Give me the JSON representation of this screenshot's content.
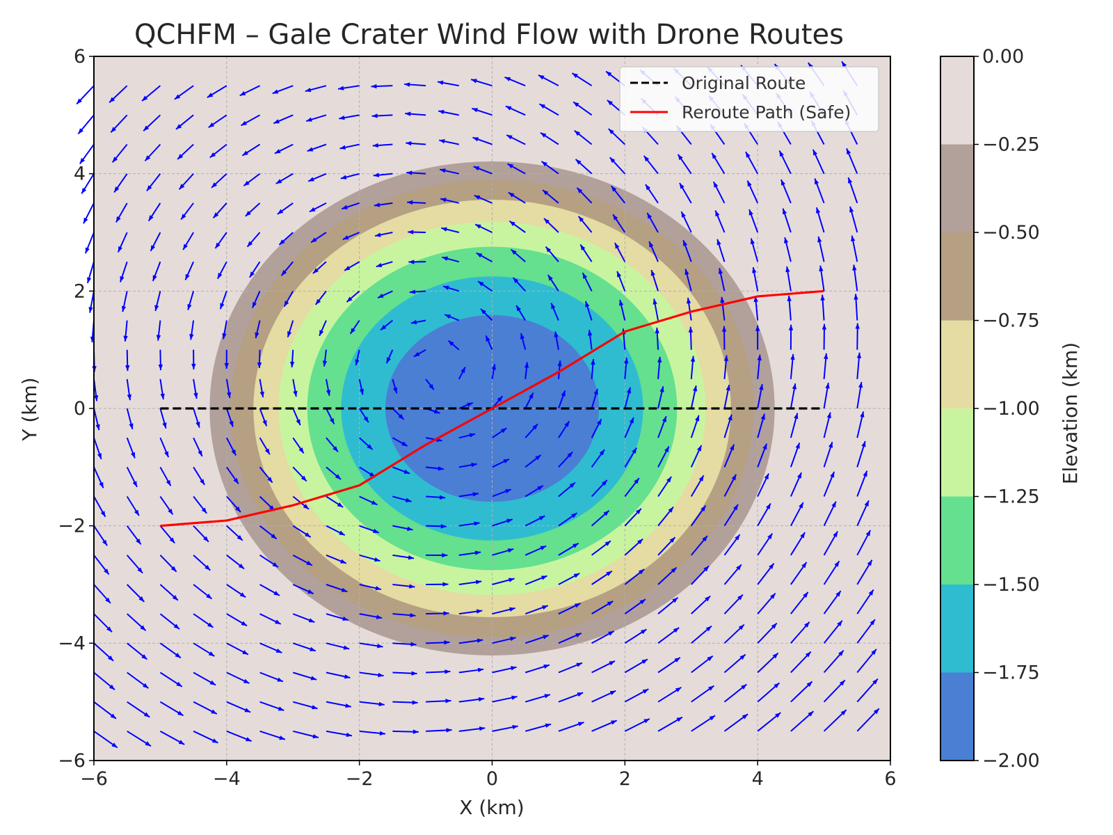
{
  "chart_data": {
    "type": "contour-quiver",
    "title": "QCHFM – Gale Crater Wind Flow with Drone Routes",
    "xlabel": "X (km)",
    "ylabel": "Y (km)",
    "xlim": [
      -6,
      6
    ],
    "ylim": [
      -6,
      6
    ],
    "xticks": [
      -6,
      -4,
      -2,
      0,
      2,
      4,
      6
    ],
    "yticks": [
      -6,
      -4,
      -2,
      0,
      2,
      4,
      6
    ],
    "x_tick_labels": [
      "−6",
      "−4",
      "−2",
      "0",
      "2",
      "4",
      "6"
    ],
    "y_tick_labels": [
      "−6",
      "−4",
      "−2",
      "0",
      "2",
      "4",
      "6"
    ],
    "grid": true,
    "crater": {
      "depth_km": 2.0,
      "radius_x_km": 4.55,
      "radius_y_km": 4.5
    },
    "contour_levels": [
      -2.0,
      -1.75,
      -1.5,
      -1.25,
      -1.0,
      -0.75,
      -0.5,
      -0.25,
      0.0
    ],
    "contour_colors": [
      "#4a7fd4",
      "#2fbcd0",
      "#64e08f",
      "#c8f4a0",
      "#e4dca2",
      "#b5a083",
      "#b2a09a",
      "#e5dcda"
    ],
    "colorbar": {
      "label": "Elevation (km)",
      "tick_labels": [
        "0.00",
        "−0.25",
        "−0.50",
        "−0.75",
        "−1.00",
        "−1.25",
        "−1.50",
        "−1.75",
        "−2.00"
      ]
    },
    "series": [
      {
        "name": "Original Route",
        "style": "dashed",
        "color": "#000000",
        "x": [
          -5,
          5
        ],
        "y": [
          0,
          0
        ]
      },
      {
        "name": "Reroute Path (Safe)",
        "style": "solid",
        "color": "#ff0000",
        "x": [
          -5,
          -4,
          -3,
          -2,
          -1,
          0,
          1,
          2,
          3,
          4,
          5
        ],
        "y": [
          -2,
          -1.91,
          -1.65,
          -1.31,
          -0.62,
          0,
          0.62,
          1.31,
          1.65,
          1.91,
          2
        ]
      }
    ],
    "wind_field": {
      "color": "#0000ff",
      "grid_x": [
        -6,
        -5.5,
        -5,
        -4.5,
        -4,
        -3.5,
        -3,
        -2.5,
        -2,
        -1.5,
        -1,
        -0.5,
        0,
        0.5,
        1,
        1.5,
        2,
        2.5,
        3,
        3.5,
        4,
        4.5,
        5,
        5.5
      ],
      "grid_y": [
        -5.5,
        -5,
        -4.5,
        -4,
        -3.5,
        -3,
        -2.5,
        -2,
        -1.5,
        -1,
        -0.5,
        0,
        0.5,
        1,
        1.5,
        2,
        2.5,
        3,
        3.5,
        4,
        4.5,
        5,
        5.5
      ],
      "description": "swirling flow u = -y·k + 0.25, v = x·k + 0.3 around the crater center"
    },
    "legend": {
      "position": "top-right",
      "entries": [
        "Original Route",
        "Reroute Path (Safe)"
      ]
    }
  }
}
